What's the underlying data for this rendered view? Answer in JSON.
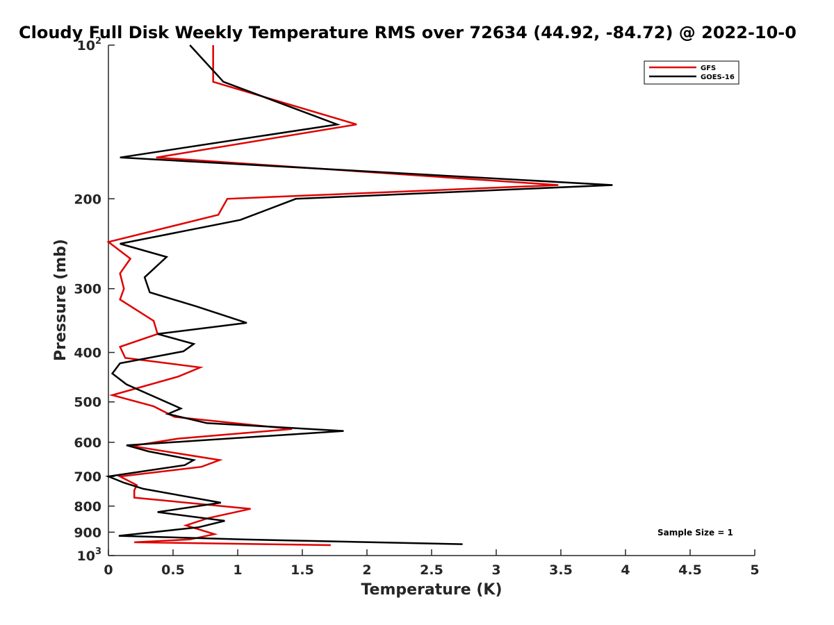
{
  "chart_data": {
    "type": "line",
    "orientation": "profile",
    "title": "Cloudy Full Disk Weekly Temperature RMS over 72634 (44.92, -84.72) @ 2022-10-0",
    "xlabel": "Temperature (K)",
    "ylabel": "Pressure (mb)",
    "xlim": [
      0,
      5
    ],
    "ylim": [
      100,
      1000
    ],
    "y_scale": "log",
    "y_reversed": true,
    "x_ticks": [
      "0",
      "0.5",
      "1",
      "1.5",
      "2",
      "2.5",
      "3",
      "3.5",
      "4",
      "4.5",
      "5"
    ],
    "y_ticks": [
      {
        "value": 100,
        "label": "10",
        "sup": "2"
      },
      {
        "value": 200,
        "label": "200"
      },
      {
        "value": 300,
        "label": "300"
      },
      {
        "value": 400,
        "label": "400"
      },
      {
        "value": 500,
        "label": "500"
      },
      {
        "value": 600,
        "label": "600"
      },
      {
        "value": 700,
        "label": "700"
      },
      {
        "value": 800,
        "label": "800"
      },
      {
        "value": 900,
        "label": "900"
      },
      {
        "value": 1000,
        "label": "10",
        "sup": "3"
      }
    ],
    "grid": false,
    "legend_position": "top-right",
    "annotation": "Sample Size = 1",
    "series": [
      {
        "name": "GFS",
        "color": "#e00000",
        "points": [
          [
            0.81,
            100
          ],
          [
            0.81,
            118
          ],
          [
            1.92,
            143
          ],
          [
            0.37,
            166
          ],
          [
            3.48,
            188
          ],
          [
            0.92,
            200
          ],
          [
            0.85,
            215
          ],
          [
            0.0,
            243
          ],
          [
            0.17,
            262
          ],
          [
            0.09,
            280
          ],
          [
            0.12,
            300
          ],
          [
            0.09,
            315
          ],
          [
            0.35,
            347
          ],
          [
            0.38,
            368
          ],
          [
            0.09,
            390
          ],
          [
            0.13,
            410
          ],
          [
            0.71,
            428
          ],
          [
            0.54,
            446
          ],
          [
            0.03,
            485
          ],
          [
            0.35,
            510
          ],
          [
            0.51,
            535
          ],
          [
            1.42,
            565
          ],
          [
            0.54,
            590
          ],
          [
            0.18,
            610
          ],
          [
            0.86,
            650
          ],
          [
            0.72,
            670
          ],
          [
            0.09,
            700
          ],
          [
            0.22,
            728
          ],
          [
            0.2,
            745
          ],
          [
            0.2,
            770
          ],
          [
            1.1,
            810
          ],
          [
            0.77,
            845
          ],
          [
            0.6,
            873
          ],
          [
            0.82,
            908
          ],
          [
            0.63,
            930
          ],
          [
            0.2,
            942
          ],
          [
            1.72,
            954
          ]
        ]
      },
      {
        "name": "GOES-16",
        "color": "#000000",
        "points": [
          [
            0.63,
            100
          ],
          [
            0.89,
            118
          ],
          [
            1.77,
            143
          ],
          [
            0.09,
            166
          ],
          [
            3.9,
            188
          ],
          [
            1.45,
            200
          ],
          [
            1.02,
            220
          ],
          [
            0.09,
            245
          ],
          [
            0.45,
            260
          ],
          [
            0.28,
            285
          ],
          [
            0.32,
            305
          ],
          [
            0.68,
            325
          ],
          [
            1.07,
            350
          ],
          [
            0.38,
            368
          ],
          [
            0.66,
            385
          ],
          [
            0.58,
            398
          ],
          [
            0.09,
            420
          ],
          [
            0.03,
            440
          ],
          [
            0.14,
            462
          ],
          [
            0.56,
            515
          ],
          [
            0.46,
            528
          ],
          [
            0.76,
            550
          ],
          [
            1.82,
            570
          ],
          [
            0.14,
            608
          ],
          [
            0.31,
            625
          ],
          [
            0.66,
            650
          ],
          [
            0.59,
            665
          ],
          [
            0.0,
            700
          ],
          [
            0.12,
            720
          ],
          [
            0.27,
            740
          ],
          [
            0.87,
            788
          ],
          [
            0.38,
            822
          ],
          [
            0.9,
            855
          ],
          [
            0.7,
            880
          ],
          [
            0.08,
            915
          ],
          [
            1.04,
            930
          ],
          [
            2.74,
            950
          ]
        ]
      }
    ]
  }
}
